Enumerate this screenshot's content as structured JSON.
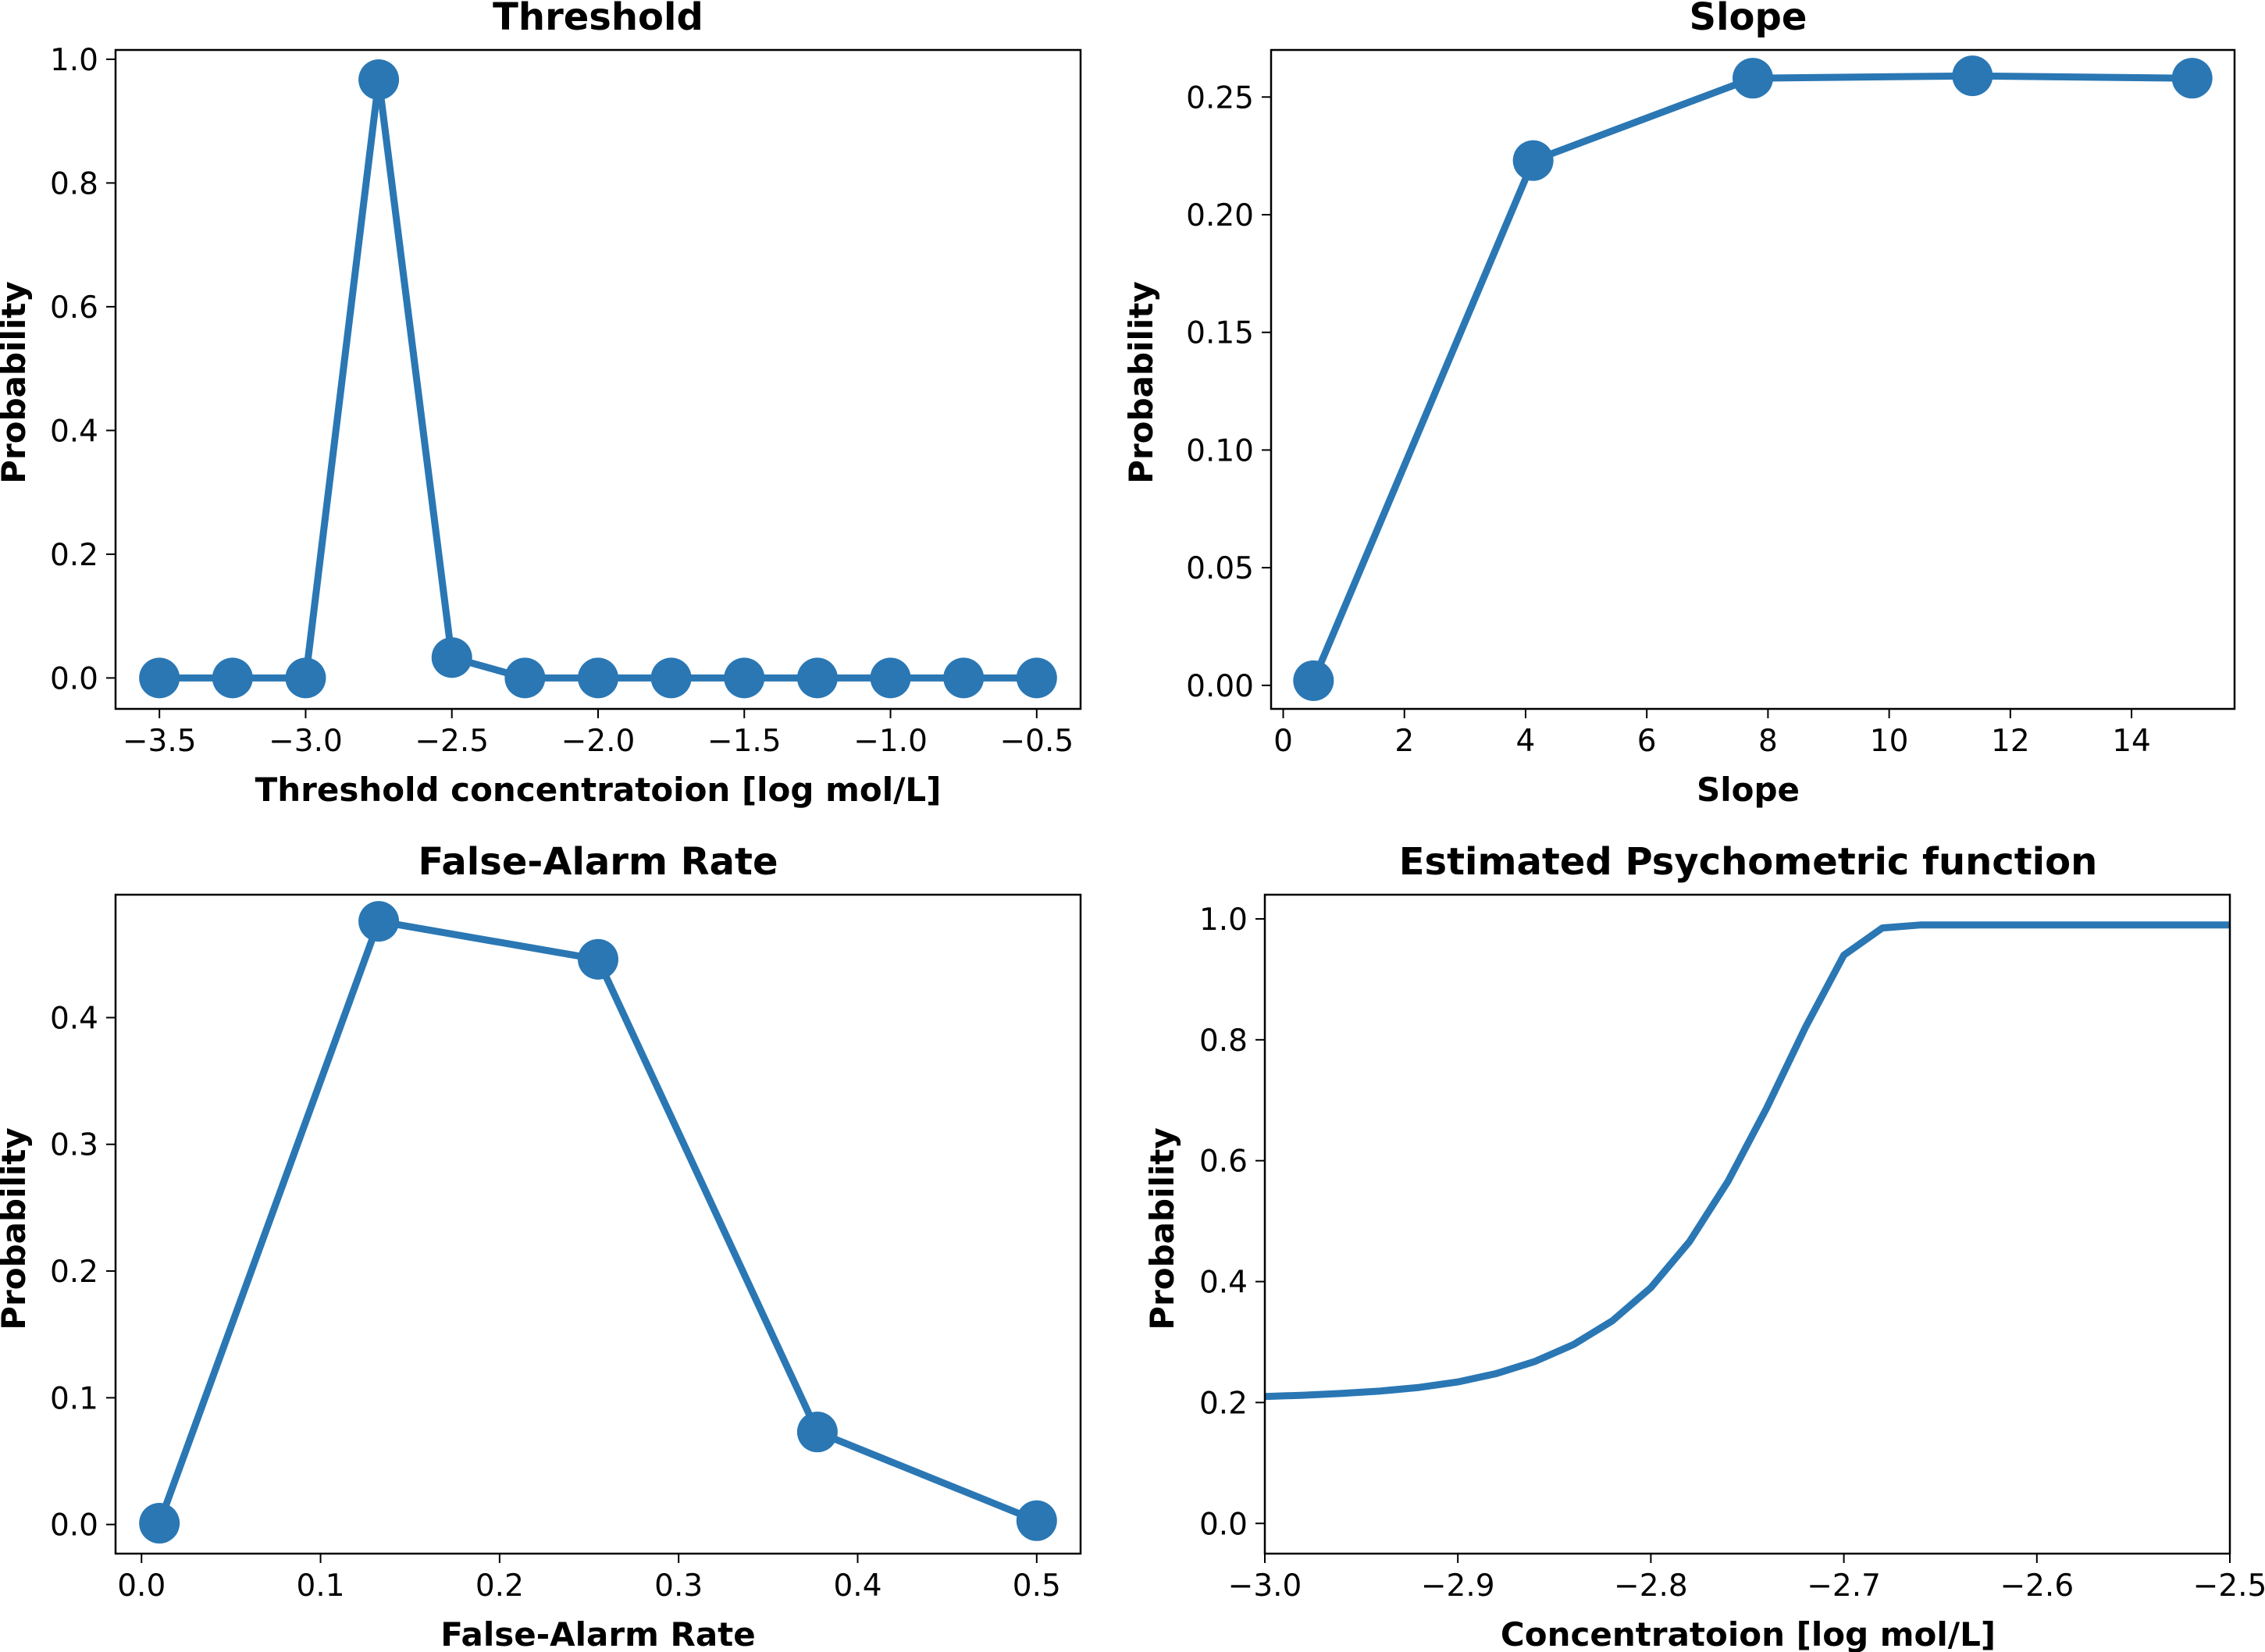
{
  "figure": {
    "line_color": "#2a77b4",
    "background": "#ffffff"
  },
  "chart_data": [
    {
      "type": "line",
      "title": "Threshold",
      "xlabel": "Threshold concentratoion [log mol/L]",
      "ylabel": "Probability",
      "xlim": [
        -3.65,
        -0.35
      ],
      "ylim": [
        -0.05,
        1.015
      ],
      "xticks": [
        -3.5,
        -3.0,
        -2.5,
        -2.0,
        -1.5,
        -1.0,
        -0.5
      ],
      "xtick_labels": [
        "−3.5",
        "−3.0",
        "−2.5",
        "−2.0",
        "−1.5",
        "−1.0",
        "−0.5"
      ],
      "yticks": [
        0.0,
        0.2,
        0.4,
        0.6,
        0.8,
        1.0
      ],
      "ytick_labels": [
        "0.0",
        "0.2",
        "0.4",
        "0.6",
        "0.8",
        "1.0"
      ],
      "markers": true,
      "x": [
        -3.5,
        -3.25,
        -3.0,
        -2.75,
        -2.5,
        -2.25,
        -2.0,
        -1.75,
        -1.5,
        -1.25,
        -1.0,
        -0.75,
        -0.5
      ],
      "y": [
        0.0,
        0.0,
        0.0,
        0.967,
        0.033,
        0.0,
        0.0,
        0.0,
        0.0,
        0.0,
        0.0,
        0.0,
        0.0
      ]
    },
    {
      "type": "line",
      "title": "Slope",
      "xlabel": "Slope",
      "ylabel": "Probability",
      "xlim": [
        -0.2,
        15.7
      ],
      "ylim": [
        -0.01,
        0.27
      ],
      "xticks": [
        0,
        2,
        4,
        6,
        8,
        10,
        12,
        14
      ],
      "xtick_labels": [
        "0",
        "2",
        "4",
        "6",
        "8",
        "10",
        "12",
        "14"
      ],
      "yticks": [
        0.0,
        0.05,
        0.1,
        0.15,
        0.2,
        0.25
      ],
      "ytick_labels": [
        "0.00",
        "0.05",
        "0.10",
        "0.15",
        "0.20",
        "0.25"
      ],
      "markers": true,
      "x": [
        0.5,
        4.125,
        7.75,
        11.375,
        15.0
      ],
      "y": [
        0.002,
        0.223,
        0.258,
        0.259,
        0.258
      ]
    },
    {
      "type": "line",
      "title": "False-Alarm Rate",
      "xlabel": "False-Alarm Rate",
      "ylabel": "Probability",
      "xlim": [
        -0.0145,
        0.5245
      ],
      "ylim": [
        -0.023,
        0.497
      ],
      "xticks": [
        0.0,
        0.1,
        0.2,
        0.3,
        0.4,
        0.5
      ],
      "xtick_labels": [
        "0.0",
        "0.1",
        "0.2",
        "0.3",
        "0.4",
        "0.5"
      ],
      "yticks": [
        0.0,
        0.1,
        0.2,
        0.3,
        0.4
      ],
      "ytick_labels": [
        "0.0",
        "0.1",
        "0.2",
        "0.3",
        "0.4"
      ],
      "markers": true,
      "x": [
        0.01,
        0.1325,
        0.255,
        0.3775,
        0.5
      ],
      "y": [
        0.001,
        0.476,
        0.446,
        0.073,
        0.003
      ]
    },
    {
      "type": "line",
      "title": "Estimated Psychometric function",
      "xlabel": "Concentratoion [log mol/L]",
      "ylabel": "Probability",
      "xlim": [
        -3.0,
        -2.5
      ],
      "ylim": [
        -0.05,
        1.04
      ],
      "xticks": [
        -3.0,
        -2.9,
        -2.8,
        -2.7,
        -2.6,
        -2.5
      ],
      "xtick_labels": [
        "−3.0",
        "−2.9",
        "−2.8",
        "−2.7",
        "−2.6",
        "−2.5"
      ],
      "yticks": [
        0.0,
        0.2,
        0.4,
        0.6,
        0.8,
        1.0
      ],
      "ytick_labels": [
        "0.0",
        "0.2",
        "0.4",
        "0.6",
        "0.8",
        "1.0"
      ],
      "markers": false,
      "x": [
        -3.0,
        -2.98,
        -2.96,
        -2.94,
        -2.92,
        -2.9,
        -2.88,
        -2.86,
        -2.84,
        -2.82,
        -2.8,
        -2.78,
        -2.76,
        -2.74,
        -2.72,
        -2.7,
        -2.68,
        -2.66,
        -2.64,
        -2.62,
        -2.6,
        -2.58,
        -2.56,
        -2.54,
        -2.52,
        -2.5
      ],
      "y": [
        0.21,
        0.212,
        0.215,
        0.219,
        0.225,
        0.234,
        0.248,
        0.268,
        0.296,
        0.335,
        0.39,
        0.466,
        0.566,
        0.687,
        0.82,
        0.94,
        0.985,
        0.99,
        0.99,
        0.99,
        0.99,
        0.99,
        0.99,
        0.99,
        0.99,
        0.99
      ]
    }
  ]
}
